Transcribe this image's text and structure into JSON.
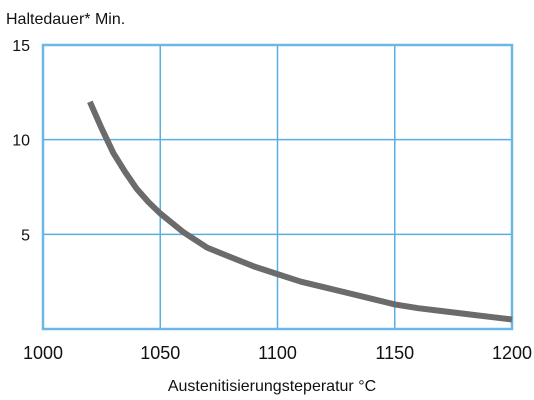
{
  "chart_data": {
    "type": "line",
    "title": "",
    "ylabel": "Haltedauer* Min.",
    "xlabel": "Austenitisierungsteperatur °C",
    "xlim": [
      1000,
      1200
    ],
    "ylim": [
      0,
      15
    ],
    "xticks": [
      {
        "value": 1000,
        "label": "1000"
      },
      {
        "value": 1050,
        "label": "1050"
      },
      {
        "value": 1100,
        "label": "1100"
      },
      {
        "value": 1150,
        "label": "1150"
      },
      {
        "value": 1200,
        "label": "1200"
      }
    ],
    "yticks": [
      {
        "value": 5,
        "label": "5"
      },
      {
        "value": 10,
        "label": "10"
      },
      {
        "value": 15,
        "label": "15"
      }
    ],
    "grid": true,
    "series": [
      {
        "name": "",
        "color": "#6b6b6b",
        "points": [
          [
            1020,
            12.0
          ],
          [
            1025,
            10.6
          ],
          [
            1030,
            9.3
          ],
          [
            1035,
            8.3
          ],
          [
            1040,
            7.4
          ],
          [
            1045,
            6.7
          ],
          [
            1050,
            6.1
          ],
          [
            1060,
            5.1
          ],
          [
            1070,
            4.3
          ],
          [
            1080,
            3.8
          ],
          [
            1090,
            3.3
          ],
          [
            1100,
            2.9
          ],
          [
            1110,
            2.5
          ],
          [
            1120,
            2.2
          ],
          [
            1130,
            1.9
          ],
          [
            1140,
            1.6
          ],
          [
            1150,
            1.3
          ],
          [
            1160,
            1.1
          ],
          [
            1170,
            0.95
          ],
          [
            1180,
            0.8
          ],
          [
            1190,
            0.65
          ],
          [
            1200,
            0.5
          ]
        ]
      }
    ],
    "colors": {
      "grid": "#5aaee0",
      "frame": "#6bb8e6",
      "line": "#6b6b6b"
    }
  }
}
